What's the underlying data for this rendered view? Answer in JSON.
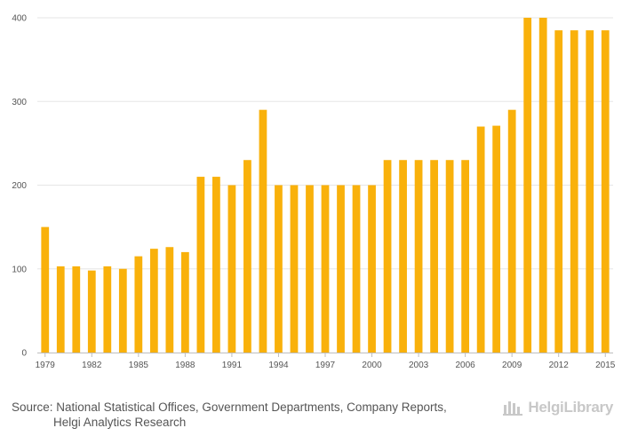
{
  "chart_data": {
    "type": "bar",
    "title": "",
    "xlabel": "",
    "ylabel": "",
    "ylim": [
      0,
      400
    ],
    "yticks": [
      0,
      100,
      200,
      300,
      400
    ],
    "categories": [
      "1979",
      "1980",
      "1981",
      "1982",
      "1983",
      "1984",
      "1985",
      "1986",
      "1987",
      "1988",
      "1989",
      "1990",
      "1991",
      "1992",
      "1993",
      "1994",
      "1995",
      "1996",
      "1997",
      "1998",
      "1999",
      "2000",
      "2001",
      "2002",
      "2003",
      "2004",
      "2005",
      "2006",
      "2007",
      "2008",
      "2009",
      "2010",
      "2011",
      "2012",
      "2013",
      "2014",
      "2015"
    ],
    "xticks": [
      "1979",
      "1982",
      "1985",
      "1988",
      "1991",
      "1994",
      "1997",
      "2000",
      "2003",
      "2006",
      "2009",
      "2012",
      "2015"
    ],
    "values": [
      150,
      103,
      103,
      98,
      103,
      100,
      115,
      124,
      126,
      120,
      210,
      210,
      200,
      230,
      290,
      200,
      200,
      200,
      200,
      200,
      200,
      200,
      230,
      230,
      230,
      230,
      230,
      230,
      270,
      271,
      290,
      400,
      400,
      385,
      385,
      385,
      385
    ],
    "bar_color": "#f9b10b",
    "grid": true
  },
  "source": {
    "label": "Source:",
    "line1": "National Statistical Offices, Government Departments, Company Reports,",
    "line2": "Helgi Analytics Research"
  },
  "logo": {
    "text": "HelgiLibrary",
    "icon": "helgi-logo-icon"
  }
}
